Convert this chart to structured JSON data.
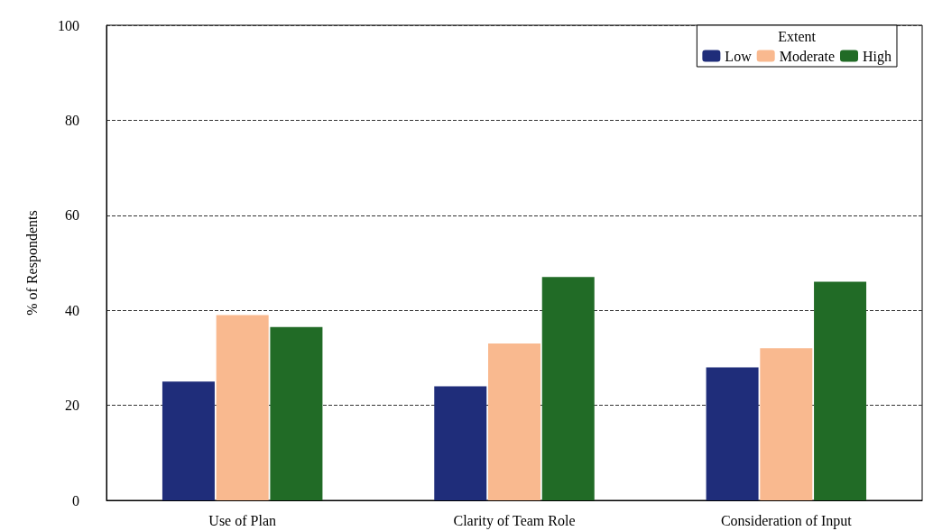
{
  "chart_data": {
    "type": "bar",
    "ylabel": "% of Respondents",
    "legend_title": "Extent",
    "categories": [
      "Use of Plan",
      "Clarity of Team Role",
      "Consideration of Input"
    ],
    "series": [
      {
        "name": "Low",
        "color": "#1f2d7a",
        "values": [
          25,
          24,
          28
        ]
      },
      {
        "name": "Moderate",
        "color": "#f9b98f",
        "values": [
          39,
          33,
          32
        ]
      },
      {
        "name": "High",
        "color": "#216b26",
        "values": [
          36.5,
          47,
          46
        ]
      }
    ],
    "ylim": [
      0,
      100
    ],
    "yticks": [
      0,
      20,
      40,
      60,
      80,
      100
    ],
    "grid": "y",
    "line_style": "dashed",
    "legend": "top right"
  }
}
